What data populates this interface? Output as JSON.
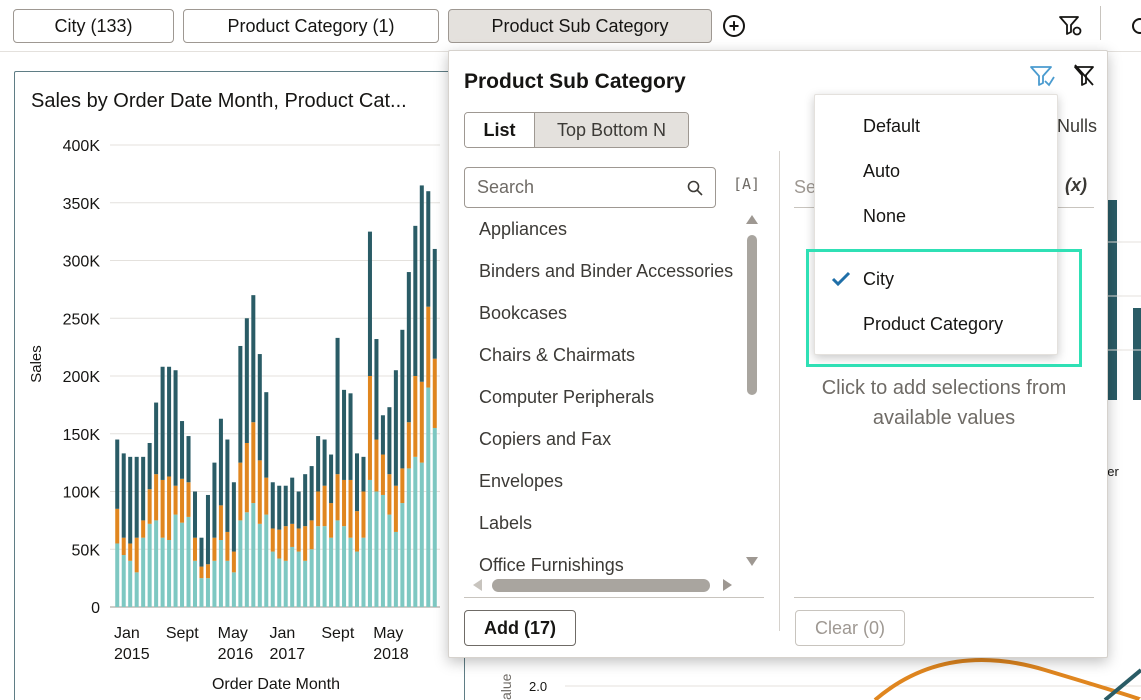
{
  "filter_bar": {
    "pills": [
      {
        "label": "City (133)"
      },
      {
        "label": "Product Category (1)"
      },
      {
        "label": "Product Sub Category"
      }
    ],
    "add_filter_symbol": "+"
  },
  "chart_card": {
    "title": "Sales by Order Date Month, Product Cat..."
  },
  "chart_data": {
    "type": "bar",
    "stacked": true,
    "ylabel": "Sales",
    "xlabel": "Order Date Month",
    "ylim": [
      0,
      400000
    ],
    "y_ticks": [
      "0",
      "50K",
      "100K",
      "150K",
      "200K",
      "250K",
      "300K",
      "350K",
      "400K"
    ],
    "x_tick_labels": [
      {
        "line1": "Jan",
        "line2": "2015",
        "index": 0
      },
      {
        "line1": "Sept",
        "line2": "",
        "index": 8
      },
      {
        "line1": "May",
        "line2": "2016",
        "index": 16
      },
      {
        "line1": "Jan",
        "line2": "2017",
        "index": 24
      },
      {
        "line1": "Sept",
        "line2": "",
        "index": 32
      },
      {
        "line1": "May",
        "line2": "2018",
        "index": 40
      }
    ],
    "colors": [
      "#7ec8c2",
      "#e0861f",
      "#2a5c66"
    ],
    "series": [
      {
        "values": [
          55000,
          45000,
          40000,
          30000,
          60000,
          72000,
          75000,
          60000,
          58000,
          80000,
          73000,
          78000,
          40000,
          25000,
          25000,
          40000,
          58000,
          40000,
          30000,
          75000,
          82000,
          90000,
          72000,
          80000,
          48000,
          42000,
          40000,
          52000,
          48000,
          40000,
          50000,
          70000,
          70000,
          60000,
          75000,
          70000,
          60000,
          48000,
          60000,
          110000,
          100000,
          97000,
          80000,
          65000,
          90000,
          120000,
          130000,
          125000,
          190000,
          155000
        ]
      },
      {
        "values": [
          30000,
          15000,
          15000,
          30000,
          15000,
          30000,
          40000,
          50000,
          55000,
          25000,
          38000,
          30000,
          20000,
          10000,
          12000,
          20000,
          30000,
          25000,
          18000,
          50000,
          60000,
          70000,
          55000,
          32000,
          20000,
          25000,
          30000,
          20000,
          20000,
          30000,
          25000,
          30000,
          35000,
          30000,
          40000,
          40000,
          50000,
          35000,
          40000,
          90000,
          45000,
          35000,
          35000,
          40000,
          30000,
          40000,
          70000,
          70000,
          70000,
          60000
        ]
      },
      {
        "values": [
          60000,
          73000,
          75000,
          70000,
          55000,
          40000,
          62000,
          98000,
          95000,
          100000,
          50000,
          40000,
          40000,
          25000,
          60000,
          65000,
          75000,
          80000,
          60000,
          101000,
          108000,
          110000,
          92000,
          74000,
          40000,
          38000,
          35000,
          40000,
          32000,
          45000,
          47000,
          48000,
          40000,
          42000,
          118000,
          78000,
          75000,
          50000,
          30000,
          125000,
          87000,
          34000,
          58000,
          100000,
          120000,
          130000,
          130000,
          170000,
          100000,
          95000
        ]
      }
    ]
  },
  "popup": {
    "title": "Product Sub Category",
    "tabs": {
      "list": "List",
      "top_bottom": "Top Bottom N"
    },
    "search_placeholder": "Search",
    "aa_label": "[A]",
    "items": [
      "Appliances",
      "Binders and Binder Accessories",
      "Bookcases",
      "Chairs & Chairmats",
      "Computer Peripherals",
      "Copiers and Fax",
      "Envelopes",
      "Labels",
      "Office Furnishings"
    ],
    "add_button": "Add (17)",
    "selection_search_stub": "Se",
    "x_variable": "(x)",
    "nulls_stub": "Nulls",
    "empty_message": "Click to add selections from available values",
    "clear_button": "Clear (0)"
  },
  "limit_menu": {
    "items": [
      "Default",
      "Auto",
      "None"
    ],
    "limit_by": [
      {
        "label": "City",
        "checked": true
      },
      {
        "label": "Product Category",
        "checked": false
      }
    ]
  },
  "background": {
    "right_stub_label": "ber",
    "bottom_axis_label": "alue",
    "bottom_tick": "2.0"
  },
  "colors": {
    "accent_teal": "#2fe0b5",
    "check_blue": "#1f6fa8",
    "limit_icon_blue": "#4a9bcf"
  }
}
